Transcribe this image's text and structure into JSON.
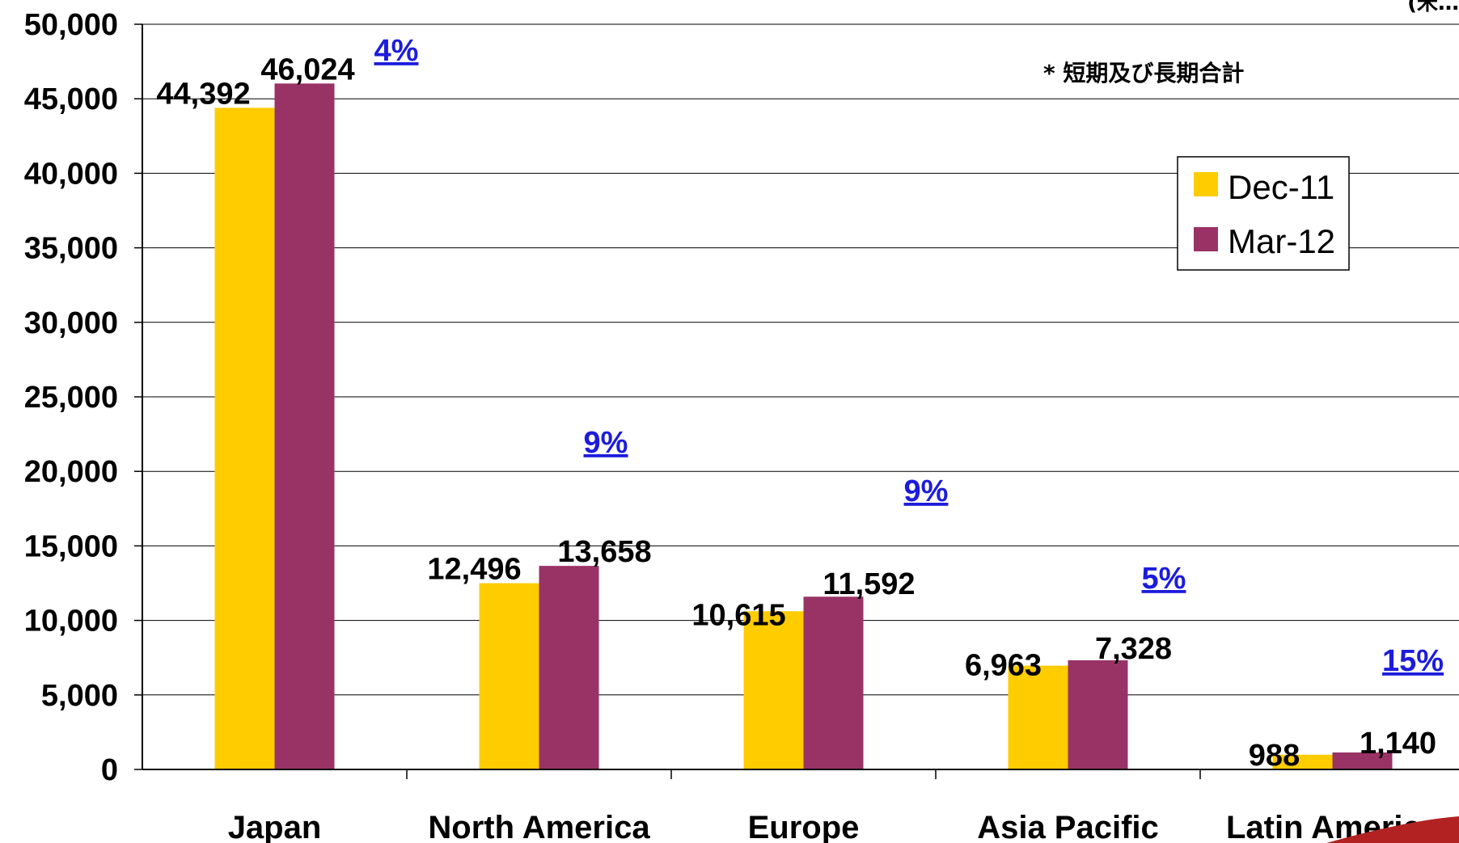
{
  "chart_data": {
    "type": "bar",
    "categories": [
      "Japan",
      "North America",
      "Europe",
      "Asia Pacific",
      "Latin America"
    ],
    "series": [
      {
        "name": "Dec-11",
        "values": [
          44392,
          12496,
          10615,
          6963,
          988
        ],
        "labels": [
          "44,392",
          "12,496",
          "10,615",
          "6,963",
          "988"
        ]
      },
      {
        "name": "Mar-12",
        "values": [
          46024,
          13658,
          11592,
          7328,
          1140
        ],
        "labels": [
          "46,024",
          "13,658",
          "11,592",
          "7,328",
          "1,140"
        ]
      }
    ],
    "growth_labels": [
      "4%",
      "9%",
      "9%",
      "5%",
      "15%"
    ],
    "ylim": [
      0,
      50000
    ],
    "yticks": [
      {
        "value": 0,
        "label": "0"
      },
      {
        "value": 5000,
        "label": "5,000"
      },
      {
        "value": 10000,
        "label": "10,000"
      },
      {
        "value": 15000,
        "label": "15,000"
      },
      {
        "value": 20000,
        "label": "20,000"
      },
      {
        "value": 25000,
        "label": "25,000"
      },
      {
        "value": 30000,
        "label": "30,000"
      },
      {
        "value": 35000,
        "label": "35,000"
      },
      {
        "value": 40000,
        "label": "40,000"
      },
      {
        "value": 45000,
        "label": "45,000"
      },
      {
        "value": 50000,
        "label": "50,000"
      }
    ],
    "grid": true,
    "legend": "upper-right",
    "note": "* 短期及び長期合計",
    "unit_label": "(米…",
    "colors": {
      "Dec-11": "#ffcc00",
      "Mar-12": "#993366",
      "growth": "#1c1cdc",
      "accent": "#b22222"
    }
  }
}
